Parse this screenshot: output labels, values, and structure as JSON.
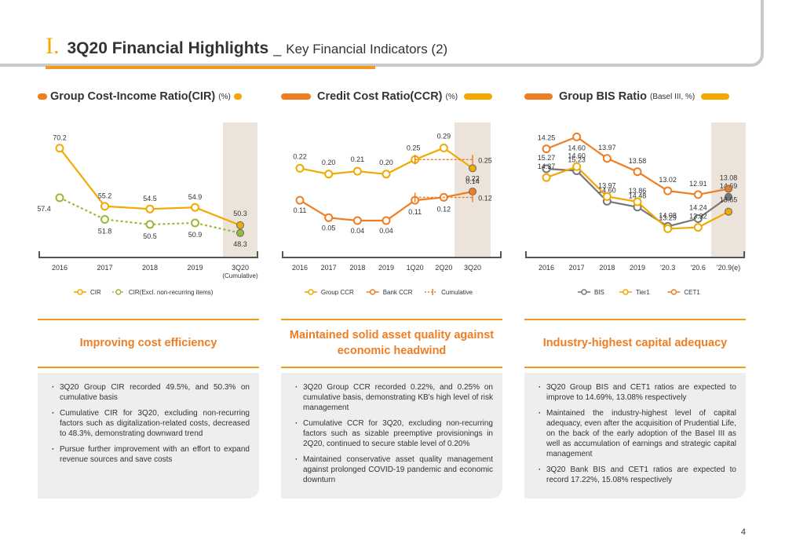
{
  "header": {
    "roman": "I.",
    "title": "3Q20 Financial Highlights",
    "separator": "_",
    "subtitle": "Key Financial Indicators (2)"
  },
  "page_number": "4",
  "colors": {
    "orange": "#ef7d22",
    "yellow": "#f2a900",
    "green": "#9ab93b",
    "gray": "#777777",
    "highlight": "#ece4db"
  },
  "panels": [
    {
      "title": "Group Cost-Income Ratio(CIR)",
      "unit": "(%)",
      "headline": "Improving cost efficiency",
      "bullets": [
        "3Q20 Group CIR recorded 49.5%, and 50.3% on cumulative basis",
        "Cumulative CIR for 3Q20, excluding non-recurring factors such as digitalization-related costs, decreased to 48.3%, demonstrating downward trend",
        "Pursue further improvement with an effort to expand revenue sources and save costs"
      ]
    },
    {
      "title": "Credit Cost Ratio(CCR)",
      "unit": "(%)",
      "headline": "Maintained solid asset quality against economic headwind",
      "bullets": [
        "3Q20 Group CCR recorded 0.22%, and 0.25% on cumulative basis, demonstrating KB's high level of risk management",
        "Cumulative CCR for 3Q20, excluding non-recurring factors such as sizable preemptive provisionings in 2Q20, continued to secure stable level of 0.20%",
        "Maintained conservative asset quality management against prolonged COVID-19 pandemic and economic downturn"
      ]
    },
    {
      "title": "Group BIS Ratio",
      "unit": "(Basel III, %)",
      "headline": "Industry-highest capital adequacy",
      "bullets": [
        "3Q20 Group BIS and CET1 ratios are expected to improve to 14.69%, 13.08% respectively",
        "Maintained the industry-highest level of capital adequacy, even after the acquisition of Prudential Life, on the back of the early adoption of the Basel III as well as accumulation of earnings and strategic capital management",
        "3Q20 Bank BIS and CET1 ratios are expected to record 17.22%, 15.08% respectively"
      ]
    }
  ],
  "chart_data": [
    {
      "type": "line",
      "categories": [
        "2016",
        "2017",
        "2018",
        "2019",
        "3Q20"
      ],
      "category_note": "(Cumulative)",
      "series": [
        {
          "name": "CIR",
          "values": [
            70.2,
            55.2,
            54.5,
            54.9,
            50.3
          ],
          "labels": [
            "70.2",
            "55.2",
            "54.5",
            "54.9",
            "50.3"
          ],
          "color": "#f2a900",
          "dashed": false
        },
        {
          "name": "CIR(Excl. non-recurring items)",
          "values": [
            57.4,
            51.8,
            50.5,
            50.9,
            48.3
          ],
          "labels": [
            "57.4",
            "51.8",
            "50.5",
            "50.9",
            "48.3"
          ],
          "color": "#9ab93b",
          "dashed": true
        }
      ],
      "highlight_last": true,
      "ylim": [
        44,
        74
      ]
    },
    {
      "type": "line",
      "categories": [
        "2016",
        "2017",
        "2018",
        "2019",
        "1Q20",
        "2Q20",
        "3Q20"
      ],
      "series": [
        {
          "name": "Group CCR",
          "values": [
            0.22,
            0.2,
            0.21,
            0.2,
            0.25,
            0.29,
            0.22
          ],
          "labels": [
            "0.22",
            "0.20",
            "0.21",
            "0.20",
            "0.25",
            "0.29",
            "0.22"
          ],
          "color": "#f2a900",
          "dashed": false
        },
        {
          "name": "Bank CCR",
          "values": [
            0.11,
            0.05,
            0.04,
            0.04,
            0.11,
            0.12,
            0.14
          ],
          "labels": [
            "0.11",
            "0.05",
            "0.04",
            "0.04",
            "0.11",
            "0.12",
            "0.14"
          ],
          "color": "#ef7d22",
          "dashed": false
        }
      ],
      "cumulative": {
        "name": "Cumulative",
        "group": 0.25,
        "bank": 0.12,
        "labels": [
          "0.25",
          "0.12"
        ],
        "from": "1Q20",
        "to": "3Q20"
      },
      "highlight_last": true,
      "ylim": [
        -0.06,
        0.34
      ]
    },
    {
      "type": "line",
      "categories": [
        "2016",
        "2017",
        "2018",
        "2019",
        "'20.3",
        "'20.6",
        "'20.9(e)"
      ],
      "series": [
        {
          "name": "BIS",
          "values": [
            15.27,
            15.23,
            14.6,
            14.48,
            14.08,
            14.24,
            14.69
          ],
          "labels": [
            "15.27",
            "15.23",
            "14.60",
            "14.48",
            "14.08",
            "14.24",
            "14.69"
          ],
          "color": "#777777",
          "dashed": false
        },
        {
          "name": "Tier1",
          "values": [
            14.37,
            14.6,
            13.97,
            13.86,
            13.29,
            13.32,
            13.65
          ],
          "labels": [
            "14.37",
            "14.60",
            "13.97",
            "13.86",
            "13.29",
            "13.32",
            "13.65"
          ],
          "color": "#f2a900",
          "dashed": false
        },
        {
          "name": "CET1",
          "values": [
            14.25,
            14.6,
            13.97,
            13.58,
            13.02,
            12.91,
            13.08
          ],
          "labels": [
            "14.25",
            "14.60",
            "13.97",
            "13.58",
            "13.02",
            "12.91",
            "13.08"
          ],
          "color": "#ef7d22",
          "dashed": false
        }
      ],
      "highlight_last": true,
      "series_bands": [
        [
          13.6,
          16.0
        ],
        [
          12.85,
          15.3
        ],
        [
          11.3,
          14.7
        ]
      ]
    }
  ]
}
